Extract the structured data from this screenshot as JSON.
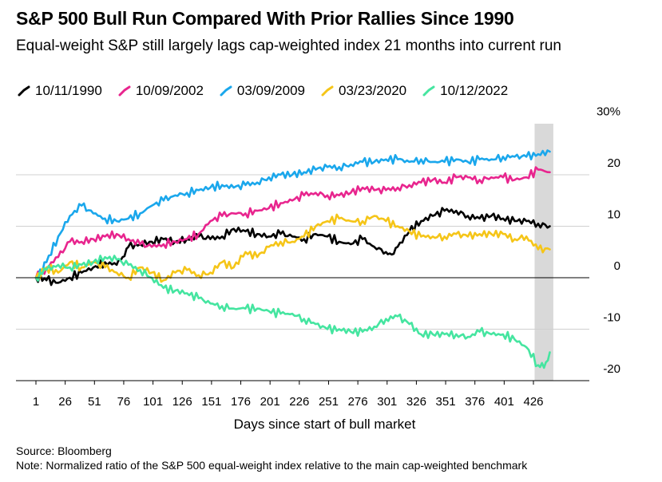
{
  "title": "S&P 500 Bull Run Compared With Prior Rallies Since 1990",
  "subtitle": "Equal-weight S&P still largely lags cap-weighted index 21 months into current run",
  "source": "Source: Bloomberg",
  "note": "Note: Normalized ratio of the S&P 500 equal-weight index relative to the main cap-weighted benchmark",
  "chart_data": {
    "type": "line",
    "title": "S&P 500 Bull Run Compared With Prior Rallies Since 1990",
    "xlabel": "Days since start of bull market",
    "ylabel": "",
    "xlim": [
      1,
      443
    ],
    "ylim": [
      -20,
      30
    ],
    "x_ticks": [
      1,
      26,
      51,
      76,
      101,
      126,
      151,
      176,
      201,
      226,
      251,
      276,
      301,
      326,
      351,
      376,
      401,
      426
    ],
    "y_ticks": [
      -20,
      -10,
      0,
      10,
      20,
      30
    ],
    "y_tick_labels": [
      "-20",
      "-10",
      "0",
      "10",
      "20",
      "30%"
    ],
    "highlight_band": [
      427,
      443
    ],
    "legend_position": "top-left",
    "series": [
      {
        "name": "10/11/1990",
        "color": "#000000",
        "x": [
          1,
          10,
          20,
          30,
          40,
          50,
          60,
          70,
          75,
          80,
          90,
          100,
          110,
          120,
          130,
          140,
          150,
          160,
          170,
          180,
          190,
          200,
          210,
          220,
          230,
          240,
          250,
          260,
          270,
          280,
          290,
          300,
          305,
          310,
          320,
          330,
          340,
          350,
          360,
          370,
          380,
          390,
          400,
          410,
          420,
          430,
          440
        ],
        "values": [
          0,
          -0.5,
          -1,
          0,
          1,
          2,
          3,
          2.5,
          4,
          6,
          6.5,
          7,
          7.5,
          7,
          7.5,
          8,
          7.5,
          8,
          9.5,
          9,
          8.5,
          8,
          8.5,
          8,
          7.5,
          8.5,
          8,
          7,
          6.5,
          7.5,
          6,
          5,
          4.5,
          6,
          9,
          11,
          12,
          13,
          13,
          12,
          11.5,
          12,
          11.5,
          11,
          11,
          10.5,
          10
        ]
      },
      {
        "name": "10/09/2002",
        "color": "#e8258e",
        "x": [
          1,
          10,
          20,
          30,
          40,
          50,
          60,
          70,
          80,
          90,
          100,
          110,
          120,
          130,
          140,
          150,
          160,
          170,
          180,
          190,
          200,
          210,
          220,
          230,
          240,
          250,
          260,
          270,
          280,
          290,
          300,
          310,
          320,
          330,
          340,
          350,
          360,
          370,
          380,
          390,
          400,
          410,
          420,
          430,
          440
        ],
        "values": [
          0,
          2,
          4,
          7,
          7,
          7.5,
          8,
          8.5,
          7.5,
          6.5,
          6,
          6.5,
          7,
          7.5,
          8.5,
          11,
          12,
          12.5,
          12.5,
          13,
          13.5,
          14.5,
          15,
          16,
          16.5,
          16,
          16,
          16.5,
          17.5,
          17,
          17,
          17.5,
          18,
          18.5,
          19,
          18.5,
          19.5,
          19.5,
          19,
          19.5,
          19.5,
          19,
          19.5,
          21,
          20.5
        ]
      },
      {
        "name": "03/09/2009",
        "color": "#1aa7ec",
        "x": [
          1,
          10,
          20,
          30,
          40,
          50,
          60,
          70,
          80,
          90,
          100,
          110,
          120,
          130,
          140,
          150,
          160,
          170,
          180,
          190,
          200,
          210,
          220,
          230,
          240,
          250,
          260,
          270,
          280,
          290,
          300,
          310,
          320,
          330,
          340,
          350,
          360,
          370,
          380,
          390,
          400,
          410,
          420,
          430,
          440
        ],
        "values": [
          0,
          3,
          8,
          12,
          14,
          12.5,
          11.5,
          11,
          11.5,
          12.5,
          14,
          15,
          16,
          16.5,
          17,
          17.5,
          18,
          17.5,
          18,
          18.5,
          19.5,
          20,
          20,
          20.5,
          21,
          21.5,
          21.5,
          22,
          22.5,
          22.5,
          23,
          23,
          22.5,
          23,
          22.5,
          22.5,
          23,
          22.5,
          23,
          23,
          23.5,
          23.5,
          23.5,
          24,
          24.5
        ]
      },
      {
        "name": "03/23/2020",
        "color": "#f5c518",
        "x": [
          1,
          10,
          20,
          30,
          40,
          50,
          60,
          70,
          80,
          90,
          100,
          110,
          120,
          130,
          140,
          150,
          160,
          170,
          180,
          190,
          200,
          210,
          220,
          230,
          240,
          250,
          260,
          270,
          280,
          290,
          300,
          310,
          320,
          330,
          340,
          350,
          360,
          370,
          380,
          390,
          400,
          410,
          420,
          430,
          440
        ],
        "values": [
          0,
          2,
          1,
          3,
          2,
          3,
          2,
          1,
          0,
          2,
          1,
          -0.5,
          1,
          1.5,
          0.5,
          1,
          3,
          2,
          5,
          4,
          6,
          7,
          7,
          8,
          10,
          11,
          11.5,
          11,
          11,
          12,
          11,
          10,
          9,
          8,
          8,
          8,
          8.5,
          8,
          8.5,
          8.5,
          8.5,
          7.5,
          8,
          5.5,
          5.5
        ]
      },
      {
        "name": "10/12/2022",
        "color": "#45e5a0",
        "x": [
          1,
          10,
          20,
          30,
          40,
          50,
          60,
          70,
          80,
          90,
          100,
          110,
          120,
          130,
          140,
          150,
          160,
          170,
          180,
          190,
          200,
          210,
          220,
          230,
          240,
          250,
          260,
          270,
          280,
          290,
          300,
          310,
          320,
          330,
          340,
          350,
          360,
          370,
          380,
          390,
          400,
          410,
          420,
          430,
          435,
          440
        ],
        "values": [
          0,
          1.5,
          2.5,
          2,
          2.5,
          3,
          4,
          3.5,
          2.5,
          1.5,
          0,
          -2,
          -2.5,
          -3,
          -4,
          -5,
          -5.5,
          -6,
          -6,
          -6,
          -6.5,
          -7,
          -7,
          -8,
          -9,
          -10,
          -10,
          -10.5,
          -10.5,
          -9.5,
          -8,
          -7.5,
          -9,
          -11,
          -11,
          -11,
          -11,
          -11.5,
          -10.5,
          -11,
          -11,
          -12,
          -13.5,
          -17,
          -17.5,
          -14.5
        ]
      }
    ]
  }
}
